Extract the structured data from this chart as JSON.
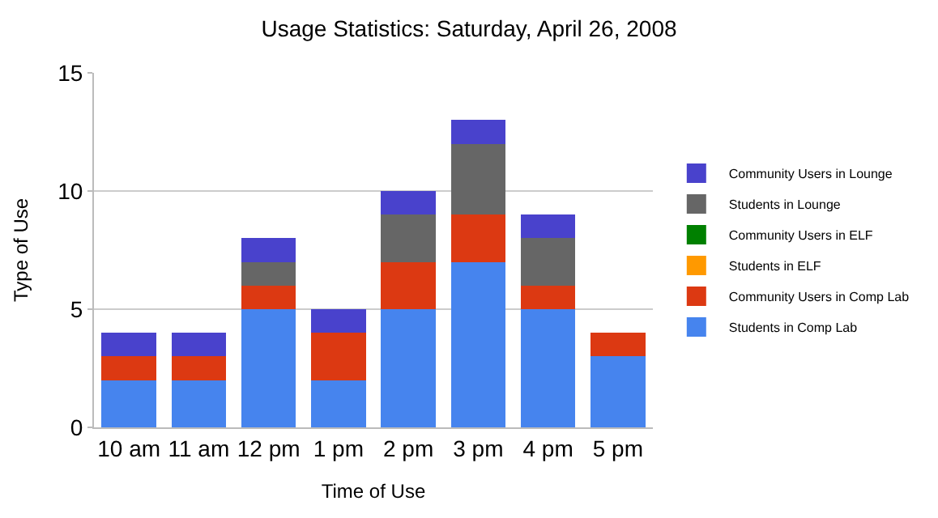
{
  "chart_data": {
    "type": "bar",
    "title": "Usage Statistics: Saturday, April 26, 2008",
    "xlabel": "Time of Use",
    "ylabel": "Type of Use",
    "categories": [
      "10 am",
      "11 am",
      "12 pm",
      "1 pm",
      "2 pm",
      "3 pm",
      "4 pm",
      "5 pm"
    ],
    "stacked": true,
    "ylim": [
      0,
      15
    ],
    "yticks": [
      0,
      5,
      10,
      15
    ],
    "grid": "y",
    "legend": "right",
    "series": [
      {
        "name": "Students in Comp Lab",
        "color": "#4684ee",
        "values": [
          2,
          2,
          5,
          2,
          5,
          7,
          5,
          3
        ]
      },
      {
        "name": "Community Users in Comp Lab",
        "color": "#dc3912",
        "values": [
          1,
          1,
          1,
          2,
          2,
          2,
          1,
          1
        ]
      },
      {
        "name": "Students in ELF",
        "color": "#ff9900",
        "values": [
          0,
          0,
          0,
          0,
          0,
          0,
          0,
          0
        ]
      },
      {
        "name": "Community Users in ELF",
        "color": "#008000",
        "values": [
          0,
          0,
          0,
          0,
          0,
          0,
          0,
          0
        ]
      },
      {
        "name": "Students in Lounge",
        "color": "#666666",
        "values": [
          0,
          0,
          1,
          0,
          2,
          3,
          2,
          0
        ]
      },
      {
        "name": "Community Users in Lounge",
        "color": "#4942cc",
        "values": [
          1,
          1,
          1,
          1,
          1,
          1,
          1,
          0
        ]
      }
    ]
  }
}
